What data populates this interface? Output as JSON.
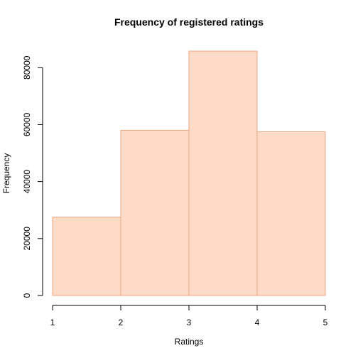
{
  "chart_data": {
    "type": "bar",
    "title": "Frequency of registered ratings",
    "xlabel": "Ratings",
    "ylabel": "Frequency",
    "bins": [
      {
        "from": 1,
        "to": 2,
        "value": 27500
      },
      {
        "from": 2,
        "to": 3,
        "value": 58000
      },
      {
        "from": 3,
        "to": 4,
        "value": 85800
      },
      {
        "from": 4,
        "to": 5,
        "value": 57500
      }
    ],
    "xlim": [
      1,
      5
    ],
    "ylim": [
      0,
      85800
    ],
    "x_ticks": [
      1,
      2,
      3,
      4,
      5
    ],
    "y_ticks": [
      0,
      20000,
      40000,
      60000,
      80000
    ],
    "grid": false,
    "legend": "none",
    "colors": {
      "bar_fill": "#FDDBC7",
      "bar_stroke": "#F4A582",
      "axis": "#000000",
      "background": "#FFFFFF"
    }
  }
}
